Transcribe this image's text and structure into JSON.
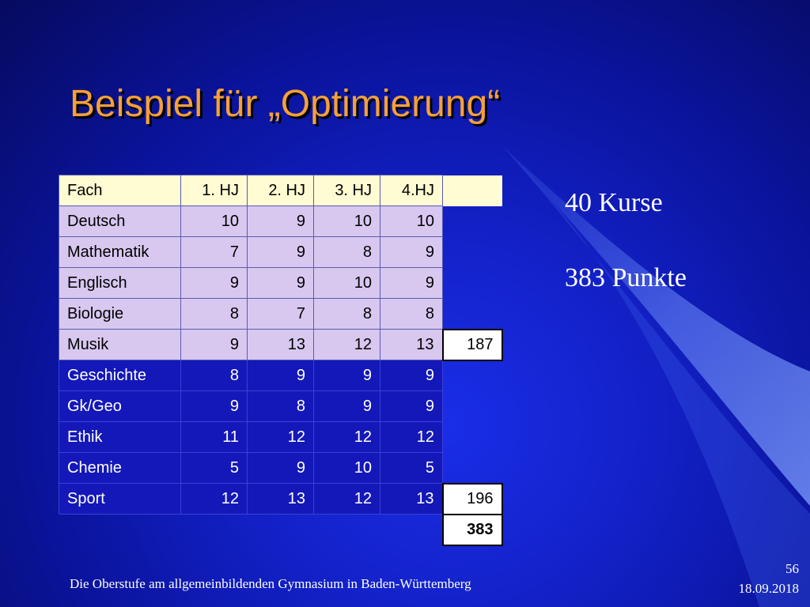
{
  "slide": {
    "title": "Beispiel für „Optimierung“",
    "courses_text": "40 Kurse",
    "points_text": "383 Punkte",
    "footer_text": "Die Oberstufe am allgemeinbildenden Gymnasium  in Baden-Württemberg",
    "page_number": "56",
    "date": "18.09.2018"
  },
  "table": {
    "headers": [
      "Fach",
      "1. HJ",
      "2. HJ",
      "3. HJ",
      "4.HJ"
    ],
    "rows": [
      {
        "subject": "Deutsch",
        "values": [
          "10",
          "9",
          "10",
          "10"
        ]
      },
      {
        "subject": "Mathematik",
        "values": [
          "7",
          "9",
          "8",
          "9"
        ]
      },
      {
        "subject": "Englisch",
        "values": [
          "9",
          "9",
          "10",
          "9"
        ]
      },
      {
        "subject": "Biologie",
        "values": [
          "8",
          "7",
          "8",
          "8"
        ]
      },
      {
        "subject": "Musik",
        "values": [
          "9",
          "13",
          "12",
          "13"
        ],
        "sum": "187"
      },
      {
        "subject": "Geschichte",
        "values": [
          "8",
          "9",
          "9",
          "9"
        ]
      },
      {
        "subject": "Gk/Geo",
        "values": [
          "9",
          "8",
          "9",
          "9"
        ]
      },
      {
        "subject": "Ethik",
        "values": [
          "11",
          "12",
          "12",
          "12"
        ]
      },
      {
        "subject": "Chemie",
        "values": [
          "5",
          "9",
          "10",
          "5"
        ]
      },
      {
        "subject": "Sport",
        "values": [
          "12",
          "13",
          "12",
          "13"
        ],
        "sum": "196"
      }
    ],
    "total": "383"
  },
  "colors": {
    "title": "#f5a03a",
    "header_bg": "#fffbd2",
    "light_row_bg": "#d8c8f0",
    "dark_row_bg": "#1418b8"
  }
}
